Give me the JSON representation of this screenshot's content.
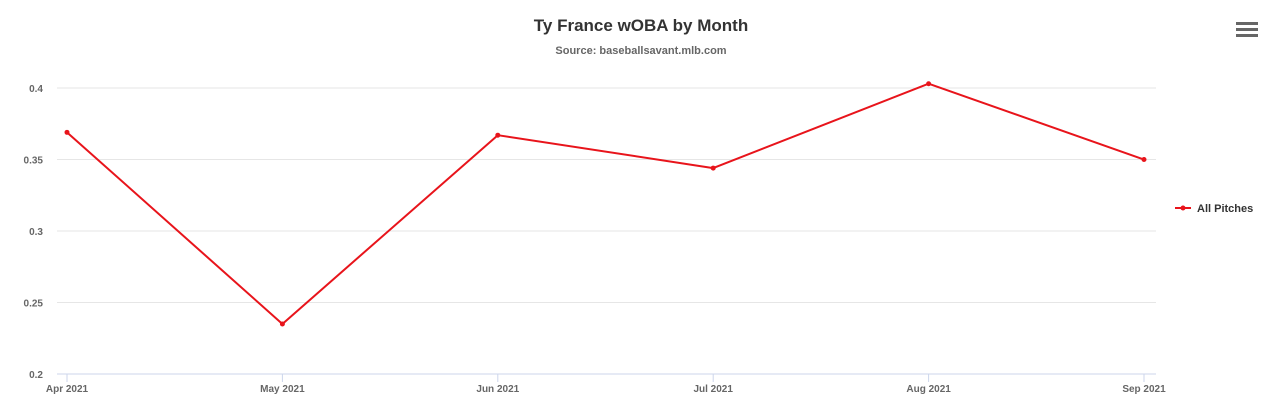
{
  "header": {
    "title": "Ty France wOBA by Month",
    "subtitle": "Source: baseballsavant.mlb.com"
  },
  "icons": {
    "menu": "hamburger-menu-icon"
  },
  "chart_data": {
    "type": "line",
    "title": "Ty France wOBA by Month",
    "subtitle": "Source: baseballsavant.mlb.com",
    "categories": [
      "Apr 2021",
      "May 2021",
      "Jun 2021",
      "Jul 2021",
      "Aug 2021",
      "Sep 2021"
    ],
    "series": [
      {
        "name": "All Pitches",
        "values": [
          0.369,
          0.235,
          0.367,
          0.344,
          0.403,
          0.35
        ],
        "color": "#e8141b"
      }
    ],
    "ylim": [
      0.2,
      0.4
    ],
    "yticks": [
      "0.2",
      "0.25",
      "0.3",
      "0.35",
      "0.4"
    ],
    "grid": true,
    "legend": "right"
  }
}
